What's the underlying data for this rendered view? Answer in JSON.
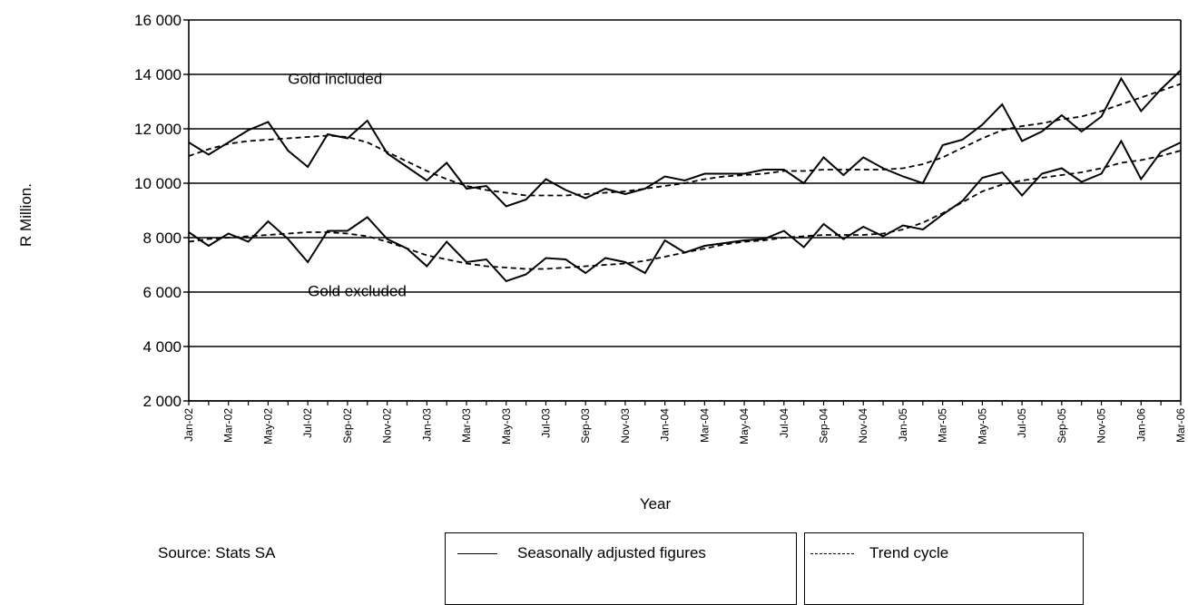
{
  "chart_data": {
    "type": "line",
    "ylabel": "R Million.",
    "xlabel": "Year",
    "ylim": [
      2000,
      16000
    ],
    "yticks": [
      2000,
      4000,
      6000,
      8000,
      10000,
      12000,
      14000,
      16000
    ],
    "ytick_labels": [
      "2 000",
      "4 000",
      "6 000",
      "8 000",
      "10 000",
      "12 000",
      "14 000",
      "16 000"
    ],
    "grid": "horizontal",
    "x": [
      "Jan-02",
      "Feb-02",
      "Mar-02",
      "Apr-02",
      "May-02",
      "Jun-02",
      "Jul-02",
      "Aug-02",
      "Sep-02",
      "Oct-02",
      "Nov-02",
      "Dec-02",
      "Jan-03",
      "Feb-03",
      "Mar-03",
      "Apr-03",
      "May-03",
      "Jun-03",
      "Jul-03",
      "Aug-03",
      "Sep-03",
      "Oct-03",
      "Nov-03",
      "Dec-03",
      "Jan-04",
      "Feb-04",
      "Mar-04",
      "Apr-04",
      "May-04",
      "Jun-04",
      "Jul-04",
      "Aug-04",
      "Sep-04",
      "Oct-04",
      "Nov-04",
      "Dec-04",
      "Jan-05",
      "Feb-05",
      "Mar-05",
      "Apr-05",
      "May-05",
      "Jun-05",
      "Jul-05",
      "Aug-05",
      "Sep-05",
      "Oct-05",
      "Nov-05",
      "Dec-05",
      "Jan-06",
      "Feb-06",
      "Mar-06"
    ],
    "x_tick_labels": [
      "Jan-02",
      "Mar-02",
      "May-02",
      "Jul-02",
      "Sep-02",
      "Nov-02",
      "Jan-03",
      "Mar-03",
      "May-03",
      "Jul-03",
      "Sep-03",
      "Nov-03",
      "Jan-04",
      "Mar-04",
      "May-04",
      "Jul-04",
      "Sep-04",
      "Nov-04",
      "Jan-05",
      "Mar-05",
      "May-05",
      "Jul-05",
      "Sep-05",
      "Nov-05",
      "Jan-06",
      "Mar-06"
    ],
    "series": [
      {
        "name": "Seasonally adjusted  figures",
        "group": "Gold included",
        "style": "solid",
        "values": [
          11500,
          11050,
          11500,
          11950,
          12250,
          11200,
          10600,
          11800,
          11650,
          12300,
          11100,
          10600,
          10100,
          10750,
          9800,
          9900,
          9150,
          9400,
          10150,
          9750,
          9450,
          9800,
          9600,
          9800,
          10250,
          10100,
          10350,
          10350,
          10350,
          10500,
          10500,
          10000,
          10950,
          10300,
          10950,
          10550,
          10250,
          10000,
          11400,
          11600,
          12150,
          12900,
          11550,
          11900,
          12500,
          11900,
          12450,
          13850,
          12650,
          13450,
          14150
        ]
      },
      {
        "name": "Trend cycle",
        "group": "Gold included",
        "style": "dashed",
        "values": [
          11000,
          11250,
          11450,
          11550,
          11600,
          11650,
          11700,
          11750,
          11700,
          11500,
          11150,
          10800,
          10450,
          10150,
          9900,
          9750,
          9650,
          9550,
          9550,
          9550,
          9600,
          9650,
          9700,
          9800,
          9900,
          10000,
          10150,
          10250,
          10300,
          10350,
          10450,
          10450,
          10500,
          10500,
          10500,
          10500,
          10550,
          10700,
          10950,
          11300,
          11650,
          11950,
          12100,
          12200,
          12350,
          12450,
          12650,
          12900,
          13150,
          13400,
          13650
        ]
      },
      {
        "name": "Seasonally adjusted  figures",
        "group": "Gold excluded",
        "style": "solid",
        "values": [
          8200,
          7700,
          8150,
          7850,
          8600,
          7950,
          7100,
          8250,
          8250,
          8750,
          7950,
          7600,
          6950,
          7850,
          7100,
          7200,
          6400,
          6650,
          7250,
          7200,
          6700,
          7250,
          7100,
          6700,
          7900,
          7450,
          7700,
          7800,
          7900,
          7950,
          8250,
          7650,
          8500,
          7950,
          8400,
          8050,
          8450,
          8300,
          8850,
          9350,
          10200,
          10400,
          9550,
          10350,
          10550,
          10050,
          10350,
          11550,
          10150,
          11150,
          11500
        ]
      },
      {
        "name": "Trend cycle",
        "group": "Gold excluded",
        "style": "dashed",
        "values": [
          7850,
          7950,
          8000,
          8050,
          8100,
          8150,
          8200,
          8200,
          8150,
          8050,
          7850,
          7600,
          7350,
          7200,
          7050,
          6950,
          6900,
          6850,
          6850,
          6900,
          6950,
          7000,
          7050,
          7150,
          7300,
          7450,
          7600,
          7750,
          7850,
          7900,
          8000,
          8050,
          8100,
          8100,
          8100,
          8150,
          8300,
          8550,
          8900,
          9300,
          9700,
          9950,
          10100,
          10200,
          10300,
          10400,
          10550,
          10750,
          10850,
          11000,
          11200
        ]
      }
    ],
    "annotations": [
      {
        "text": "Gold included",
        "x": "Jun-02",
        "y": 13650
      },
      {
        "text": "Gold excluded",
        "x": "Jul-02",
        "y": 5850
      }
    ]
  },
  "source_text": "Source:  Stats SA",
  "legend": {
    "solid_label": "Seasonally adjusted  figures",
    "dashed_label": "Trend cycle"
  }
}
